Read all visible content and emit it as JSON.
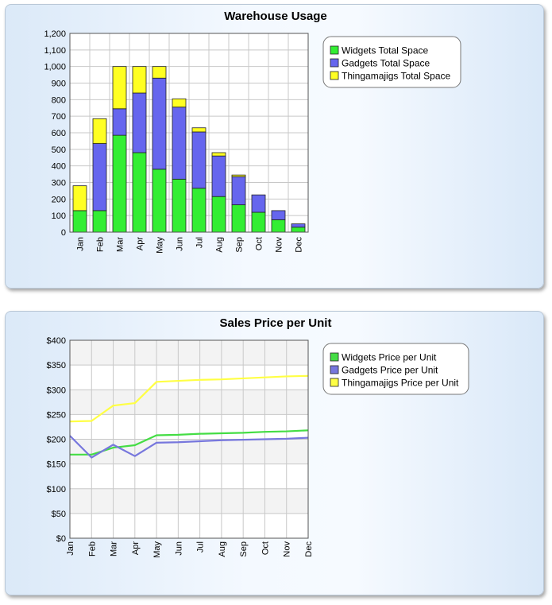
{
  "chart_data": [
    {
      "type": "bar",
      "stacked": true,
      "title": "Warehouse Usage",
      "categories": [
        "Jan",
        "Feb",
        "Mar",
        "Apr",
        "May",
        "Jun",
        "Jul",
        "Aug",
        "Sep",
        "Oct",
        "Nov",
        "Dec"
      ],
      "series": [
        {
          "name": "Widgets Total Space",
          "color": "#33ee33",
          "values": [
            130,
            130,
            585,
            480,
            380,
            320,
            265,
            215,
            165,
            120,
            75,
            30
          ]
        },
        {
          "name": "Gadgets Total Space",
          "color": "#6666ee",
          "values": [
            0,
            405,
            160,
            360,
            550,
            435,
            340,
            245,
            170,
            105,
            55,
            20
          ]
        },
        {
          "name": "Thingamajigs Total Space",
          "color": "#ffff22",
          "values": [
            150,
            150,
            255,
            160,
            70,
            50,
            25,
            20,
            10,
            0,
            0,
            0
          ]
        }
      ],
      "yticks": [
        "0",
        "100",
        "200",
        "300",
        "400",
        "500",
        "600",
        "700",
        "800",
        "900",
        "1,000",
        "1,100",
        "1,200"
      ],
      "ylim": [
        0,
        1200
      ],
      "grid": true,
      "legend": "top-right"
    },
    {
      "type": "line",
      "title": "Sales Price per Unit",
      "categories": [
        "Jan",
        "Feb",
        "Mar",
        "Apr",
        "May",
        "Jun",
        "Jul",
        "Aug",
        "Sep",
        "Oct",
        "Nov",
        "Dec"
      ],
      "series": [
        {
          "name": "Widgets Price per Unit",
          "color": "#44dd44",
          "values": [
            169,
            169,
            183,
            188,
            208,
            209,
            211,
            212,
            213,
            215,
            216,
            218
          ]
        },
        {
          "name": "Gadgets Price per Unit",
          "color": "#7777dd",
          "values": [
            207,
            163,
            189,
            166,
            193,
            194,
            196,
            198,
            199,
            200,
            201,
            203
          ]
        },
        {
          "name": "Thingamajigs Price per Unit",
          "color": "#ffff44",
          "values": [
            236,
            237,
            268,
            273,
            316,
            318,
            320,
            321,
            323,
            325,
            327,
            328
          ]
        }
      ],
      "yticks": [
        "$0",
        "$50",
        "$100",
        "$150",
        "$200",
        "$250",
        "$300",
        "$350",
        "$400"
      ],
      "ylim": [
        0,
        400
      ],
      "grid": true,
      "legend": "top-right"
    }
  ]
}
